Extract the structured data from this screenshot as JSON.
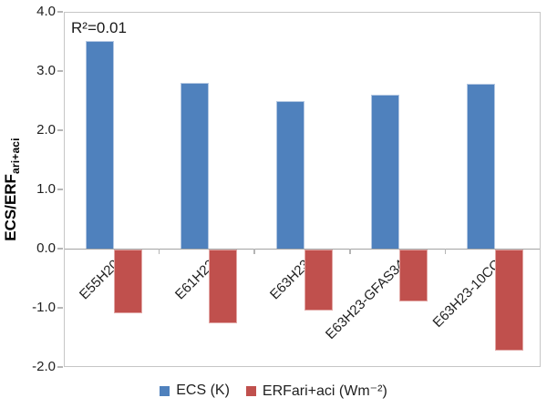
{
  "chart_data": {
    "type": "bar",
    "title": "",
    "annotation": "R²=0.01",
    "categories": [
      "E55H20",
      "E61H22",
      "E63H23",
      "E63H23-GFAS34",
      "E63H23-10CC"
    ],
    "series": [
      {
        "name": "ECS (K)",
        "color": "#4F81BD",
        "border_color": "#B3C7E2",
        "values": [
          3.52,
          2.82,
          2.51,
          2.62,
          2.8
        ]
      },
      {
        "name": "ERFari+aci (Wm⁻²)",
        "color": "#C0504D",
        "border_color": "#E2A6A4",
        "values": [
          -1.08,
          -1.24,
          -1.03,
          -0.88,
          -1.7
        ]
      }
    ],
    "ylabel_main": "ECS/ERF",
    "ylabel_sub": "ari+aci",
    "ylim": [
      -2.0,
      4.0
    ],
    "ytick_step": 1.0,
    "yticks": [
      {
        "label": "4.0",
        "value": 4.0
      },
      {
        "label": "3.0",
        "value": 3.0
      },
      {
        "label": "2.0",
        "value": 2.0
      },
      {
        "label": "1.0",
        "value": 1.0
      },
      {
        "label": "0.0",
        "value": 0.0
      },
      {
        "label": "-1.0",
        "value": -1.0
      },
      {
        "label": "-2.0",
        "value": -2.0
      }
    ],
    "grid": false,
    "legend_position": "bottom"
  }
}
